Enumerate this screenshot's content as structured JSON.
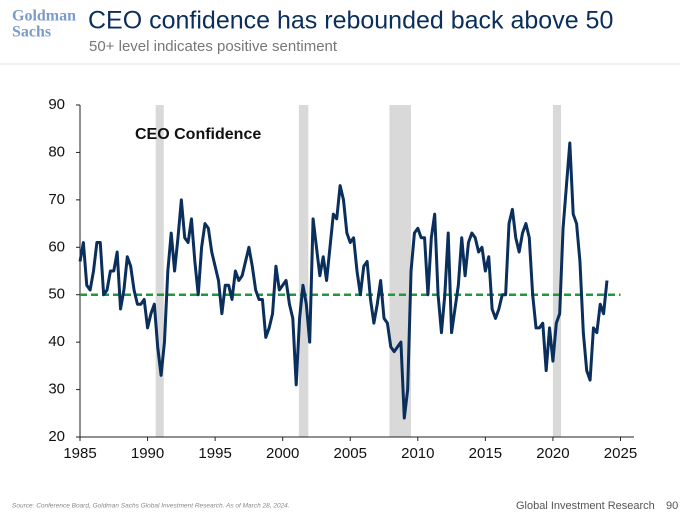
{
  "header": {
    "logo": [
      "Goldman",
      "Sachs"
    ],
    "title": "CEO confidence has rebounded back above 50",
    "subtitle": "50+ level indicates positive sentiment"
  },
  "chart_data": {
    "type": "line",
    "annotation": "CEO Confidence",
    "xlim": [
      1985,
      2026
    ],
    "xticks": [
      1985,
      1990,
      1995,
      2000,
      2005,
      2010,
      2015,
      2020,
      2025
    ],
    "ylim": [
      20,
      90
    ],
    "yticks": [
      20,
      30,
      40,
      50,
      60,
      70,
      80,
      90
    ],
    "shaded_periods": [
      [
        1990.6,
        1991.2
      ],
      [
        2001.2,
        2001.9
      ],
      [
        2007.9,
        2009.5
      ],
      [
        2020.0,
        2020.6
      ]
    ],
    "shade_color": "#d9d9d9",
    "reference_line": {
      "value": 50,
      "color": "#1e9a3c"
    },
    "series": [
      {
        "name": "CEO Confidence",
        "color": "#0b2f5c",
        "x": [
          1985,
          1985.25,
          1985.5,
          1985.75,
          1986,
          1986.25,
          1986.5,
          1986.75,
          1987,
          1987.25,
          1987.5,
          1987.75,
          1988,
          1988.25,
          1988.5,
          1988.75,
          1989,
          1989.25,
          1989.5,
          1989.75,
          1990,
          1990.25,
          1990.5,
          1990.75,
          1991,
          1991.25,
          1991.5,
          1991.75,
          1992,
          1992.25,
          1992.5,
          1992.75,
          1993,
          1993.25,
          1993.5,
          1993.75,
          1994,
          1994.25,
          1994.5,
          1994.75,
          1995,
          1995.25,
          1995.5,
          1995.75,
          1996,
          1996.25,
          1996.5,
          1996.75,
          1997,
          1997.25,
          1997.5,
          1997.75,
          1998,
          1998.25,
          1998.5,
          1998.75,
          1999,
          1999.25,
          1999.5,
          1999.75,
          2000,
          2000.25,
          2000.5,
          2000.75,
          2001,
          2001.25,
          2001.5,
          2001.75,
          2002,
          2002.25,
          2002.5,
          2002.75,
          2003,
          2003.25,
          2003.5,
          2003.75,
          2004,
          2004.25,
          2004.5,
          2004.75,
          2005,
          2005.25,
          2005.5,
          2005.75,
          2006,
          2006.25,
          2006.5,
          2006.75,
          2007,
          2007.25,
          2007.5,
          2007.75,
          2008,
          2008.25,
          2008.5,
          2008.75,
          2009,
          2009.25,
          2009.5,
          2009.75,
          2010,
          2010.25,
          2010.5,
          2010.75,
          2011,
          2011.25,
          2011.5,
          2011.75,
          2012,
          2012.25,
          2012.5,
          2012.75,
          2013,
          2013.25,
          2013.5,
          2013.75,
          2014,
          2014.25,
          2014.5,
          2014.75,
          2015,
          2015.25,
          2015.5,
          2015.75,
          2016,
          2016.25,
          2016.5,
          2016.75,
          2017,
          2017.25,
          2017.5,
          2017.75,
          2018,
          2018.25,
          2018.5,
          2018.75,
          2019,
          2019.25,
          2019.5,
          2019.75,
          2020,
          2020.25,
          2020.5,
          2020.75,
          2021,
          2021.25,
          2021.5,
          2021.75,
          2022,
          2022.25,
          2022.5,
          2022.75,
          2023,
          2023.25,
          2023.5,
          2023.75,
          2024
        ],
        "values": [
          57,
          61,
          52,
          51,
          55,
          61,
          61,
          50,
          51,
          55,
          55,
          59,
          47,
          51,
          58,
          56,
          51,
          48,
          48,
          49,
          43,
          46,
          48,
          39,
          33,
          40,
          55,
          63,
          55,
          62,
          70,
          62,
          61,
          66,
          57,
          50,
          60,
          65,
          64,
          59,
          56,
          53,
          46,
          52,
          52,
          49,
          55,
          53,
          54,
          57,
          60,
          56,
          51,
          49,
          49,
          41,
          43,
          46,
          56,
          51,
          52,
          53,
          48,
          45,
          31,
          45,
          52,
          48,
          40,
          66,
          60,
          54,
          58,
          53,
          60,
          67,
          66,
          73,
          70,
          63,
          61,
          62,
          55,
          50,
          56,
          57,
          49,
          44,
          48,
          53,
          45,
          44,
          39,
          38,
          39,
          40,
          24,
          30,
          55,
          63,
          64,
          62,
          62,
          50,
          62,
          67,
          50,
          42,
          50,
          63,
          42,
          47,
          52,
          62,
          54,
          61,
          63,
          62,
          59,
          60,
          55,
          58,
          47,
          45,
          47,
          50,
          50,
          65,
          68,
          62,
          59,
          63,
          65,
          62,
          50,
          43,
          43,
          44,
          34,
          43,
          36,
          44,
          46,
          64,
          73,
          82,
          67,
          65,
          57,
          42,
          34,
          32,
          43,
          42,
          48,
          46,
          53
        ]
      }
    ]
  },
  "footer": {
    "source": "Source: Conference Board, Goldman Sachs Global Investment Research. As of March 28, 2024.",
    "brand": "Global Investment Research",
    "page": "90"
  }
}
